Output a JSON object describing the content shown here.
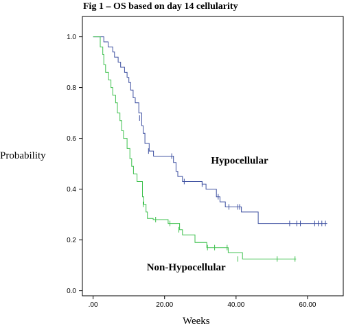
{
  "chart_data": {
    "type": "line",
    "title": "Fig 1 – OS based on day 14 cellularity",
    "xlabel": "Weeks",
    "ylabel": "Probability",
    "xlim": [
      -3,
      70
    ],
    "ylim": [
      -0.02,
      1.08
    ],
    "x_ticks": [
      0,
      20,
      40,
      60
    ],
    "x_tick_labels": [
      ".00",
      "20.00",
      "40.00",
      "60.00"
    ],
    "y_ticks": [
      0.0,
      0.2,
      0.4,
      0.6,
      0.8,
      1.0
    ],
    "y_tick_labels": [
      "0.0",
      "0.2",
      "0.4",
      "0.6",
      "0.8",
      "1.0"
    ],
    "grid": false,
    "legend": "none",
    "series": [
      {
        "name": "Hypocellular",
        "color": "#3c4fa0",
        "label_pos": [
          33,
          0.5
        ],
        "steps": [
          [
            0,
            1.0
          ],
          [
            3,
            0.98
          ],
          [
            4.2,
            0.96
          ],
          [
            5.5,
            0.94
          ],
          [
            6,
            0.92
          ],
          [
            7,
            0.9
          ],
          [
            7.7,
            0.88
          ],
          [
            8.8,
            0.86
          ],
          [
            9.5,
            0.84
          ],
          [
            10,
            0.82
          ],
          [
            10.5,
            0.79
          ],
          [
            11.2,
            0.76
          ],
          [
            11.8,
            0.74
          ],
          [
            12.8,
            0.7
          ],
          [
            13.6,
            0.65
          ],
          [
            14,
            0.62
          ],
          [
            14.5,
            0.58
          ],
          [
            15.7,
            0.55
          ],
          [
            16.9,
            0.53
          ],
          [
            22.5,
            0.505
          ],
          [
            23.2,
            0.47
          ],
          [
            23.7,
            0.45
          ],
          [
            25,
            0.43
          ],
          [
            30.5,
            0.42
          ],
          [
            31.6,
            0.4
          ],
          [
            34.5,
            0.37
          ],
          [
            35.5,
            0.35
          ],
          [
            37,
            0.33
          ],
          [
            41.5,
            0.31
          ],
          [
            46.2,
            0.265
          ],
          [
            65.5,
            0.265
          ]
        ],
        "censored": [
          [
            13,
            0.68
          ],
          [
            15.5,
            0.55
          ],
          [
            22,
            0.53
          ],
          [
            25.5,
            0.43
          ],
          [
            30.5,
            0.42
          ],
          [
            35,
            0.37
          ],
          [
            38,
            0.33
          ],
          [
            40.5,
            0.33
          ],
          [
            41,
            0.33
          ],
          [
            55,
            0.265
          ],
          [
            57,
            0.265
          ],
          [
            58,
            0.265
          ],
          [
            62,
            0.265
          ],
          [
            63,
            0.265
          ],
          [
            64,
            0.265
          ],
          [
            65,
            0.265
          ]
        ]
      },
      {
        "name": "Non-Hypocellular",
        "color": "#3cc04c",
        "label_pos": [
          15,
          0.08
        ],
        "steps": [
          [
            0,
            1.0
          ],
          [
            2,
            0.96
          ],
          [
            2.7,
            0.93
          ],
          [
            3,
            0.89
          ],
          [
            3.5,
            0.86
          ],
          [
            4.3,
            0.83
          ],
          [
            5,
            0.8
          ],
          [
            5.5,
            0.77
          ],
          [
            6.3,
            0.74
          ],
          [
            6.8,
            0.7
          ],
          [
            7.5,
            0.67
          ],
          [
            8,
            0.63
          ],
          [
            8.5,
            0.6
          ],
          [
            9.5,
            0.56
          ],
          [
            10.3,
            0.52
          ],
          [
            10.8,
            0.49
          ],
          [
            11.3,
            0.46
          ],
          [
            12.3,
            0.43
          ],
          [
            13.8,
            0.37
          ],
          [
            14.2,
            0.34
          ],
          [
            14.8,
            0.31
          ],
          [
            15.2,
            0.285
          ],
          [
            16.8,
            0.28
          ],
          [
            21,
            0.265
          ],
          [
            24.2,
            0.24
          ],
          [
            25,
            0.22
          ],
          [
            28.5,
            0.19
          ],
          [
            31.8,
            0.17
          ],
          [
            37.8,
            0.15
          ],
          [
            41.8,
            0.125
          ],
          [
            56.8,
            0.125
          ]
        ],
        "censored": [
          [
            14,
            0.34
          ],
          [
            17.5,
            0.28
          ],
          [
            21.5,
            0.265
          ],
          [
            24,
            0.24
          ],
          [
            32,
            0.17
          ],
          [
            34,
            0.17
          ],
          [
            37.5,
            0.17
          ],
          [
            40.5,
            0.125
          ],
          [
            51.5,
            0.125
          ],
          [
            56.5,
            0.125
          ]
        ]
      }
    ]
  }
}
